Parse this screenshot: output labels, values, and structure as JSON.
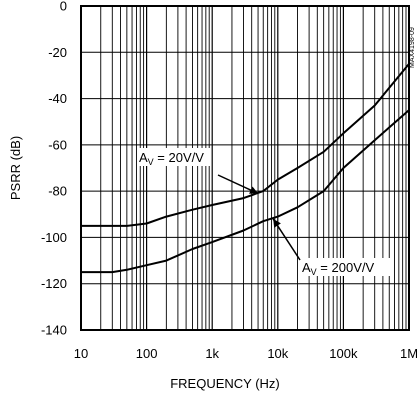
{
  "chart_data": {
    "type": "line",
    "xlabel": "FREQUENCY (Hz)",
    "ylabel": "PSRR (dB)",
    "x_scale": "log",
    "xlim": [
      10,
      1000000
    ],
    "ylim": [
      -140,
      0
    ],
    "grid": true,
    "x_ticks": [
      {
        "value": 10,
        "label": "10"
      },
      {
        "value": 100,
        "label": "100"
      },
      {
        "value": 1000,
        "label": "1k"
      },
      {
        "value": 10000,
        "label": "10k"
      },
      {
        "value": 100000,
        "label": "100k"
      },
      {
        "value": 1000000,
        "label": "1M"
      }
    ],
    "y_ticks": [
      {
        "value": 0,
        "label": "0"
      },
      {
        "value": -20,
        "label": "-20"
      },
      {
        "value": -40,
        "label": "-40"
      },
      {
        "value": -60,
        "label": "-60"
      },
      {
        "value": -80,
        "label": "-80"
      },
      {
        "value": -100,
        "label": "-100"
      },
      {
        "value": -120,
        "label": "-120"
      },
      {
        "value": -140,
        "label": "-140"
      }
    ],
    "series": [
      {
        "name": "AV = 20V/V",
        "color": "#000000",
        "x": [
          10,
          30,
          50,
          100,
          200,
          500,
          1000,
          3000,
          6000,
          10000,
          20000,
          50000,
          100000,
          300000,
          1000000
        ],
        "y": [
          -95,
          -95,
          -95,
          -94,
          -91,
          -88,
          -86,
          -83,
          -80,
          -75,
          -70,
          -63,
          -55,
          -43,
          -25
        ]
      },
      {
        "name": "AV = 200V/V",
        "color": "#000000",
        "x": [
          10,
          30,
          50,
          100,
          200,
          500,
          1000,
          3000,
          6000,
          10000,
          20000,
          50000,
          100000,
          300000,
          1000000
        ],
        "y": [
          -115,
          -115,
          -114,
          -112,
          -110,
          -105,
          -102,
          -97,
          -93,
          -91,
          -87,
          -80,
          -70,
          -58,
          -45
        ]
      }
    ],
    "annotations": [
      {
        "prefix": "A",
        "sub": "V",
        "rest": " = 20V/V",
        "target_x": 5000,
        "target_y": -81
      },
      {
        "prefix": "A",
        "sub": "V",
        "rest": " = 200V/V",
        "target_x": 8500,
        "target_y": -92
      }
    ],
    "watermark": "MAX4198-09"
  }
}
